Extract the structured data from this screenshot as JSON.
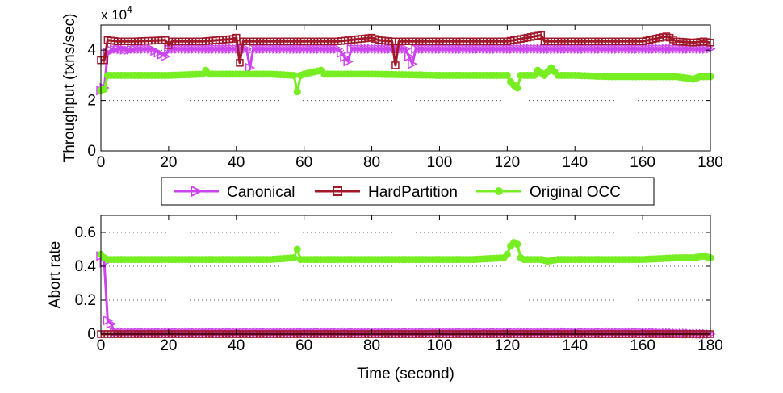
{
  "chart_data": [
    {
      "id": "throughput",
      "type": "line",
      "ylabel": "Throughput (txns/sec)",
      "xlabel": "",
      "y_exponent_label": "x 10",
      "y_exponent_power": "4",
      "xlim": [
        0,
        180
      ],
      "ylim": [
        0,
        5
      ],
      "xticks": [
        0,
        20,
        40,
        60,
        80,
        100,
        120,
        140,
        160,
        180
      ],
      "yticks": [
        0,
        2,
        4
      ],
      "grid_y": [
        2,
        4
      ],
      "series": [
        {
          "name": "Canonical",
          "color": "#CC44EE",
          "marker": "triangle-right",
          "points": [
            [
              0,
              2.4
            ],
            [
              1,
              2.5
            ],
            [
              2,
              3.9
            ],
            [
              3,
              4.0
            ],
            [
              5,
              4.05
            ],
            [
              8,
              4.0
            ],
            [
              10,
              4.05
            ],
            [
              15,
              4.05
            ],
            [
              19,
              3.75
            ],
            [
              20,
              4.05
            ],
            [
              30,
              4.05
            ],
            [
              40,
              4.05
            ],
            [
              43,
              4.05
            ],
            [
              44,
              3.3
            ],
            [
              45,
              4.05
            ],
            [
              60,
              4.05
            ],
            [
              70,
              4.05
            ],
            [
              73,
              3.55
            ],
            [
              74,
              4.05
            ],
            [
              80,
              4.05
            ],
            [
              90,
              4.05
            ],
            [
              92,
              3.45
            ],
            [
              93,
              4.05
            ],
            [
              100,
              4.05
            ],
            [
              120,
              4.05
            ],
            [
              140,
              4.05
            ],
            [
              160,
              4.05
            ],
            [
              170,
              4.05
            ],
            [
              180,
              4.05
            ]
          ]
        },
        {
          "name": "HardPartition",
          "color": "#A0182A",
          "marker": "square",
          "points": [
            [
              0,
              3.6
            ],
            [
              1,
              3.6
            ],
            [
              2,
              4.4
            ],
            [
              5,
              4.35
            ],
            [
              10,
              4.35
            ],
            [
              19,
              4.4
            ],
            [
              20,
              4.2
            ],
            [
              21,
              4.35
            ],
            [
              30,
              4.35
            ],
            [
              39,
              4.45
            ],
            [
              40,
              4.5
            ],
            [
              41,
              3.5
            ],
            [
              42,
              4.35
            ],
            [
              50,
              4.35
            ],
            [
              60,
              4.35
            ],
            [
              70,
              4.35
            ],
            [
              80,
              4.5
            ],
            [
              82,
              4.4
            ],
            [
              86,
              4.35
            ],
            [
              87,
              3.4
            ],
            [
              88,
              4.35
            ],
            [
              100,
              4.35
            ],
            [
              120,
              4.35
            ],
            [
              130,
              4.6
            ],
            [
              131,
              4.35
            ],
            [
              140,
              4.35
            ],
            [
              160,
              4.35
            ],
            [
              167,
              4.55
            ],
            [
              168,
              4.5
            ],
            [
              170,
              4.35
            ],
            [
              175,
              4.3
            ],
            [
              178,
              4.35
            ],
            [
              180,
              4.3
            ]
          ]
        },
        {
          "name": "Original OCC",
          "color": "#77EE22",
          "marker": "circle",
          "points": [
            [
              0,
              2.4
            ],
            [
              1,
              2.45
            ],
            [
              2,
              3.0
            ],
            [
              5,
              3.0
            ],
            [
              10,
              3.0
            ],
            [
              20,
              3.0
            ],
            [
              30,
              3.05
            ],
            [
              31,
              3.2
            ],
            [
              32,
              3.05
            ],
            [
              40,
              3.05
            ],
            [
              50,
              3.05
            ],
            [
              57,
              3.0
            ],
            [
              58,
              2.35
            ],
            [
              59,
              3.0
            ],
            [
              60,
              3.05
            ],
            [
              65,
              3.2
            ],
            [
              66,
              3.05
            ],
            [
              80,
              3.05
            ],
            [
              100,
              3.0
            ],
            [
              120,
              3.0
            ],
            [
              121,
              2.75
            ],
            [
              122,
              2.6
            ],
            [
              123,
              2.5
            ],
            [
              124,
              3.0
            ],
            [
              128,
              3.0
            ],
            [
              129,
              3.2
            ],
            [
              130,
              3.1
            ],
            [
              131,
              3.0
            ],
            [
              133,
              3.3
            ],
            [
              135,
              3.0
            ],
            [
              140,
              3.0
            ],
            [
              150,
              2.95
            ],
            [
              160,
              2.95
            ],
            [
              170,
              2.95
            ],
            [
              175,
              2.85
            ],
            [
              177,
              2.95
            ],
            [
              180,
              2.95
            ]
          ]
        }
      ]
    },
    {
      "id": "abort",
      "type": "line",
      "ylabel": "Abort rate",
      "xlabel": "Time (second)",
      "xlim": [
        0,
        180
      ],
      "ylim": [
        0,
        0.7
      ],
      "xticks": [
        0,
        20,
        40,
        60,
        80,
        100,
        120,
        140,
        160,
        180
      ],
      "yticks": [
        0,
        0.2,
        0.4,
        0.6
      ],
      "grid_y": [
        0.2,
        0.4,
        0.6
      ],
      "series": [
        {
          "name": "Canonical",
          "color": "#CC44EE",
          "marker": "triangle-right",
          "points": [
            [
              0,
              0.46
            ],
            [
              1,
              0.42
            ],
            [
              2,
              0.08
            ],
            [
              3,
              0.06
            ],
            [
              4,
              0.01
            ],
            [
              5,
              0.01
            ],
            [
              10,
              0.01
            ],
            [
              20,
              0.01
            ],
            [
              40,
              0.01
            ],
            [
              60,
              0.01
            ],
            [
              80,
              0.01
            ],
            [
              100,
              0.01
            ],
            [
              120,
              0.01
            ],
            [
              140,
              0.01
            ],
            [
              160,
              0.01
            ],
            [
              180,
              0.0
            ]
          ]
        },
        {
          "name": "HardPartition",
          "color": "#A0182A",
          "marker": "square",
          "points": [
            [
              0,
              0.0
            ],
            [
              10,
              0.0
            ],
            [
              20,
              0.0
            ],
            [
              40,
              0.0
            ],
            [
              60,
              0.0
            ],
            [
              80,
              0.0
            ],
            [
              100,
              0.0
            ],
            [
              120,
              0.0
            ],
            [
              140,
              0.0
            ],
            [
              160,
              0.0
            ],
            [
              180,
              0.0
            ]
          ]
        },
        {
          "name": "Original OCC",
          "color": "#77EE22",
          "marker": "circle",
          "points": [
            [
              0,
              0.47
            ],
            [
              1,
              0.45
            ],
            [
              2,
              0.44
            ],
            [
              5,
              0.44
            ],
            [
              10,
              0.44
            ],
            [
              20,
              0.44
            ],
            [
              30,
              0.44
            ],
            [
              40,
              0.44
            ],
            [
              50,
              0.44
            ],
            [
              57,
              0.45
            ],
            [
              58,
              0.5
            ],
            [
              59,
              0.44
            ],
            [
              60,
              0.44
            ],
            [
              70,
              0.44
            ],
            [
              80,
              0.44
            ],
            [
              100,
              0.44
            ],
            [
              110,
              0.44
            ],
            [
              119,
              0.45
            ],
            [
              120,
              0.47
            ],
            [
              121,
              0.52
            ],
            [
              122,
              0.54
            ],
            [
              123,
              0.53
            ],
            [
              124,
              0.45
            ],
            [
              125,
              0.44
            ],
            [
              130,
              0.44
            ],
            [
              132,
              0.43
            ],
            [
              135,
              0.44
            ],
            [
              140,
              0.44
            ],
            [
              160,
              0.44
            ],
            [
              170,
              0.45
            ],
            [
              175,
              0.45
            ],
            [
              178,
              0.46
            ],
            [
              180,
              0.45
            ]
          ]
        }
      ]
    }
  ],
  "legend": {
    "items": [
      "Canonical",
      "HardPartition",
      "Original OCC"
    ]
  }
}
